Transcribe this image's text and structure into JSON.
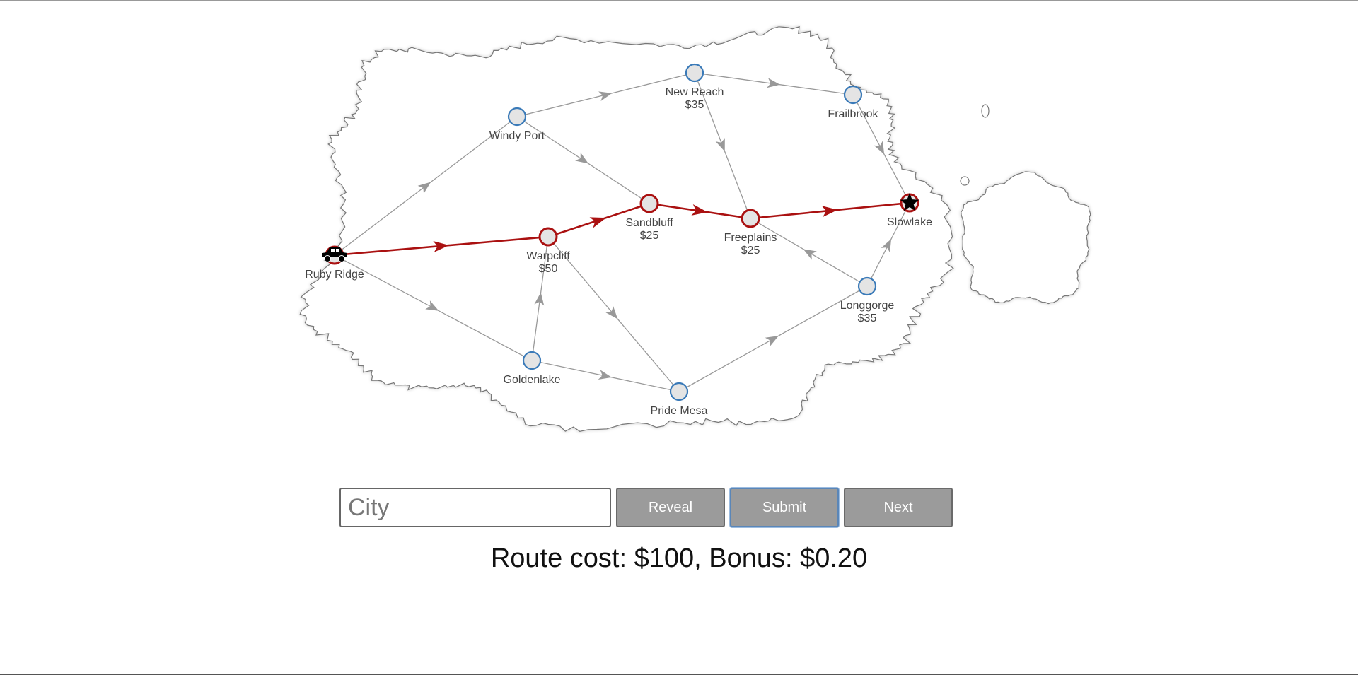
{
  "map": {
    "cities": [
      {
        "id": "ruby-ridge",
        "name": "Ruby Ridge",
        "cost": "",
        "on_route": true,
        "marker": "car-icon"
      },
      {
        "id": "windy-port",
        "name": "Windy Port",
        "cost": "",
        "on_route": false,
        "marker": ""
      },
      {
        "id": "new-reach",
        "name": "New Reach",
        "cost": "$35",
        "on_route": false,
        "marker": ""
      },
      {
        "id": "frailbrook",
        "name": "Frailbrook",
        "cost": "",
        "on_route": false,
        "marker": ""
      },
      {
        "id": "sandbluff",
        "name": "Sandbluff",
        "cost": "$25",
        "on_route": true,
        "marker": ""
      },
      {
        "id": "warpcliff",
        "name": "Warpcliff",
        "cost": "$50",
        "on_route": true,
        "marker": ""
      },
      {
        "id": "freeplains",
        "name": "Freeplains",
        "cost": "$25",
        "on_route": true,
        "marker": ""
      },
      {
        "id": "slowlake",
        "name": "Slowlake",
        "cost": "",
        "on_route": true,
        "marker": "star-icon"
      },
      {
        "id": "longgorge",
        "name": "Longgorge",
        "cost": "$35",
        "on_route": false,
        "marker": ""
      },
      {
        "id": "goldenlake",
        "name": "Goldenlake",
        "cost": "",
        "on_route": false,
        "marker": ""
      },
      {
        "id": "pride-mesa",
        "name": "Pride Mesa",
        "cost": "",
        "on_route": false,
        "marker": ""
      }
    ],
    "roads": [
      {
        "from": "ruby-ridge",
        "to": "windy-port",
        "on_route": false
      },
      {
        "from": "ruby-ridge",
        "to": "warpcliff",
        "on_route": true
      },
      {
        "from": "ruby-ridge",
        "to": "goldenlake",
        "on_route": false
      },
      {
        "from": "windy-port",
        "to": "new-reach",
        "on_route": false
      },
      {
        "from": "windy-port",
        "to": "sandbluff",
        "on_route": false
      },
      {
        "from": "new-reach",
        "to": "frailbrook",
        "on_route": false
      },
      {
        "from": "new-reach",
        "to": "freeplains",
        "on_route": false
      },
      {
        "from": "frailbrook",
        "to": "slowlake",
        "on_route": false
      },
      {
        "from": "warpcliff",
        "to": "sandbluff",
        "on_route": true
      },
      {
        "from": "warpcliff",
        "to": "pride-mesa",
        "on_route": false
      },
      {
        "from": "sandbluff",
        "to": "freeplains",
        "on_route": true
      },
      {
        "from": "freeplains",
        "to": "slowlake",
        "on_route": true
      },
      {
        "from": "goldenlake",
        "to": "warpcliff",
        "on_route": false
      },
      {
        "from": "goldenlake",
        "to": "pride-mesa",
        "on_route": false
      },
      {
        "from": "pride-mesa",
        "to": "longgorge",
        "on_route": false
      },
      {
        "from": "longgorge",
        "to": "freeplains",
        "on_route": false
      },
      {
        "from": "longgorge",
        "to": "slowlake",
        "on_route": false
      }
    ],
    "colors": {
      "route": "#aa1111",
      "road": "#999999",
      "node_fill": "#e4e4e4",
      "node_stroke": "#3a7ab8",
      "route_node_stroke": "#aa1111",
      "land_stroke": "#777777"
    }
  },
  "controls": {
    "city_placeholder": "City",
    "city_value": "",
    "reveal_label": "Reveal",
    "submit_label": "Submit",
    "next_label": "Next"
  },
  "status": {
    "text": "Route cost: $100, Bonus: $0.20"
  }
}
